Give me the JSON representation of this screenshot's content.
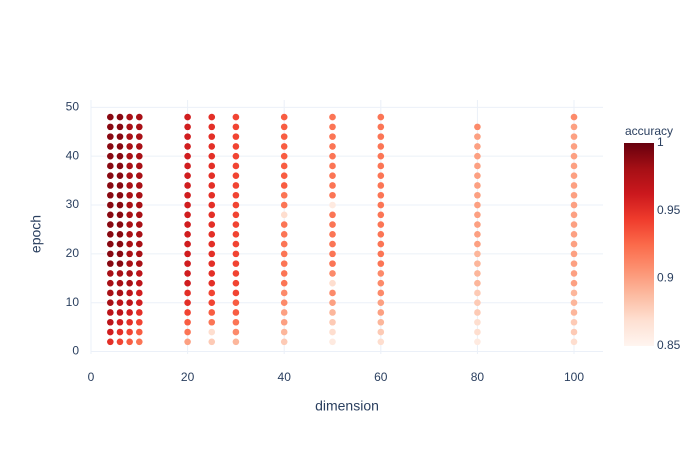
{
  "chart_data": {
    "type": "scatter",
    "x_label": "dimension",
    "y_label": "epoch",
    "color_label": "accuracy",
    "xlim": [
      0,
      106
    ],
    "ylim": [
      -0.5,
      51.5
    ],
    "xticks": [
      0,
      20,
      40,
      60,
      80,
      100
    ],
    "yticks": [
      0,
      10,
      20,
      30,
      40,
      50
    ],
    "clim": [
      0.85,
      1
    ],
    "cticks": [
      0.85,
      0.9,
      0.95,
      1
    ],
    "colorscale": [
      "#fff5f0",
      "#fee0d2",
      "#fcbba1",
      "#fc9272",
      "#fb6a4a",
      "#ef3b2c",
      "#cb181d",
      "#a50f15",
      "#67000d"
    ],
    "grid": true,
    "series": [
      {
        "x": 4,
        "y": [
          2,
          4,
          6,
          8,
          10,
          12,
          14,
          16,
          18,
          20,
          22,
          24,
          26,
          28,
          30,
          32,
          34,
          36,
          38,
          40,
          42,
          44,
          46,
          48
        ],
        "values": [
          0.95,
          0.96,
          0.97,
          0.97,
          0.98,
          0.98,
          0.98,
          0.98,
          0.99,
          0.99,
          0.99,
          0.99,
          0.99,
          0.99,
          0.99,
          0.99,
          0.99,
          0.99,
          0.99,
          0.99,
          0.99,
          0.99,
          0.99,
          0.99
        ]
      },
      {
        "x": 6,
        "y": [
          2,
          4,
          6,
          8,
          10,
          12,
          14,
          16,
          18,
          20,
          22,
          24,
          26,
          28,
          30,
          32,
          34,
          36,
          38,
          40,
          42,
          44,
          46,
          48
        ],
        "values": [
          0.94,
          0.95,
          0.96,
          0.97,
          0.97,
          0.98,
          0.98,
          0.98,
          0.99,
          0.99,
          0.99,
          0.99,
          0.99,
          0.99,
          0.99,
          0.99,
          0.99,
          0.99,
          0.99,
          0.99,
          0.99,
          0.99,
          0.99,
          0.99
        ]
      },
      {
        "x": 8,
        "y": [
          2,
          4,
          6,
          8,
          10,
          12,
          14,
          16,
          18,
          20,
          22,
          24,
          26,
          28,
          30,
          32,
          34,
          36,
          38,
          40,
          42,
          44,
          46,
          48
        ],
        "values": [
          0.93,
          0.94,
          0.95,
          0.96,
          0.97,
          0.97,
          0.98,
          0.98,
          0.98,
          0.98,
          0.98,
          0.98,
          0.98,
          0.98,
          0.98,
          0.98,
          0.98,
          0.98,
          0.98,
          0.98,
          0.98,
          0.98,
          0.98,
          0.98
        ]
      },
      {
        "x": 10,
        "y": [
          2,
          4,
          6,
          8,
          10,
          12,
          14,
          16,
          18,
          20,
          22,
          24,
          26,
          28,
          30,
          32,
          34,
          36,
          38,
          40,
          42,
          44,
          46,
          48
        ],
        "values": [
          0.92,
          0.93,
          0.94,
          0.95,
          0.96,
          0.96,
          0.97,
          0.97,
          0.98,
          0.98,
          0.98,
          0.98,
          0.98,
          0.98,
          0.98,
          0.98,
          0.98,
          0.98,
          0.98,
          0.98,
          0.98,
          0.98,
          0.98,
          0.98
        ]
      },
      {
        "x": 20,
        "y": [
          2,
          4,
          6,
          8,
          10,
          12,
          14,
          16,
          18,
          20,
          22,
          24,
          26,
          28,
          30,
          32,
          34,
          36,
          38,
          40,
          42,
          44,
          46,
          48
        ],
        "values": [
          0.9,
          0.92,
          0.93,
          0.94,
          0.95,
          0.95,
          0.96,
          0.96,
          0.96,
          0.96,
          0.96,
          0.96,
          0.96,
          0.96,
          0.96,
          0.96,
          0.96,
          0.96,
          0.96,
          0.96,
          0.96,
          0.96,
          0.96,
          0.96
        ]
      },
      {
        "x": 25,
        "y": [
          2,
          4,
          6,
          8,
          10,
          12,
          14,
          16,
          18,
          20,
          22,
          24,
          26,
          28,
          30,
          32,
          34,
          36,
          38,
          40,
          42,
          44,
          46,
          48
        ],
        "values": [
          0.88,
          0.87,
          0.92,
          0.93,
          0.94,
          0.94,
          0.95,
          0.95,
          0.95,
          0.95,
          0.95,
          0.95,
          0.95,
          0.95,
          0.95,
          0.95,
          0.95,
          0.95,
          0.95,
          0.95,
          0.95,
          0.95,
          0.95,
          0.95
        ]
      },
      {
        "x": 30,
        "y": [
          2,
          4,
          6,
          8,
          10,
          12,
          14,
          16,
          18,
          20,
          22,
          24,
          26,
          28,
          30,
          32,
          34,
          36,
          38,
          40,
          42,
          44,
          46,
          48
        ],
        "values": [
          0.89,
          0.91,
          0.92,
          0.93,
          0.93,
          0.94,
          0.94,
          0.94,
          0.94,
          0.94,
          0.94,
          0.94,
          0.94,
          0.94,
          0.94,
          0.94,
          0.94,
          0.94,
          0.94,
          0.94,
          0.94,
          0.94,
          0.94,
          0.94
        ]
      },
      {
        "x": 40,
        "y": [
          2,
          4,
          6,
          8,
          10,
          12,
          14,
          16,
          18,
          20,
          22,
          24,
          26,
          28,
          30,
          32,
          34,
          36,
          38,
          40,
          42,
          44,
          46,
          48
        ],
        "values": [
          0.88,
          0.89,
          0.9,
          0.9,
          0.91,
          0.91,
          0.92,
          0.92,
          0.92,
          0.92,
          0.92,
          0.92,
          0.92,
          0.87,
          0.92,
          0.92,
          0.93,
          0.93,
          0.93,
          0.93,
          0.93,
          0.93,
          0.93,
          0.93
        ]
      },
      {
        "x": 50,
        "y": [
          2,
          4,
          6,
          8,
          10,
          12,
          14,
          16,
          18,
          20,
          22,
          24,
          26,
          28,
          30,
          32,
          34,
          36,
          38,
          40,
          42,
          44,
          46,
          48
        ],
        "values": [
          0.86,
          0.87,
          0.88,
          0.89,
          0.9,
          0.91,
          0.87,
          0.91,
          0.92,
          0.92,
          0.92,
          0.92,
          0.92,
          0.92,
          0.86,
          0.92,
          0.92,
          0.92,
          0.92,
          0.92,
          0.92,
          0.92,
          0.92,
          0.92
        ]
      },
      {
        "x": 60,
        "y": [
          2,
          4,
          6,
          8,
          10,
          12,
          14,
          16,
          18,
          20,
          22,
          24,
          26,
          28,
          30,
          32,
          34,
          36,
          38,
          40,
          42,
          44,
          46,
          48
        ],
        "values": [
          0.87,
          0.88,
          0.89,
          0.9,
          0.9,
          0.91,
          0.91,
          0.91,
          0.92,
          0.92,
          0.92,
          0.92,
          0.92,
          0.92,
          0.92,
          0.92,
          0.92,
          0.92,
          0.92,
          0.92,
          0.92,
          0.92,
          0.92,
          0.92
        ]
      },
      {
        "x": 80,
        "y": [
          2,
          4,
          6,
          8,
          10,
          12,
          14,
          16,
          18,
          20,
          22,
          24,
          26,
          28,
          30,
          32,
          34,
          36,
          38,
          40,
          42,
          44,
          46
        ],
        "values": [
          0.86,
          0.87,
          0.87,
          0.88,
          0.88,
          0.88,
          0.89,
          0.89,
          0.89,
          0.89,
          0.9,
          0.9,
          0.9,
          0.9,
          0.9,
          0.9,
          0.9,
          0.9,
          0.9,
          0.9,
          0.9,
          0.9,
          0.91
        ]
      },
      {
        "x": 100,
        "y": [
          2,
          4,
          6,
          8,
          10,
          12,
          14,
          16,
          18,
          20,
          22,
          24,
          26,
          28,
          30,
          32,
          34,
          36,
          38,
          40,
          42,
          44,
          46,
          48
        ],
        "values": [
          0.87,
          0.88,
          0.88,
          0.89,
          0.89,
          0.89,
          0.9,
          0.9,
          0.9,
          0.9,
          0.9,
          0.9,
          0.9,
          0.9,
          0.9,
          0.9,
          0.9,
          0.9,
          0.9,
          0.9,
          0.9,
          0.9,
          0.9,
          0.91
        ]
      }
    ]
  }
}
